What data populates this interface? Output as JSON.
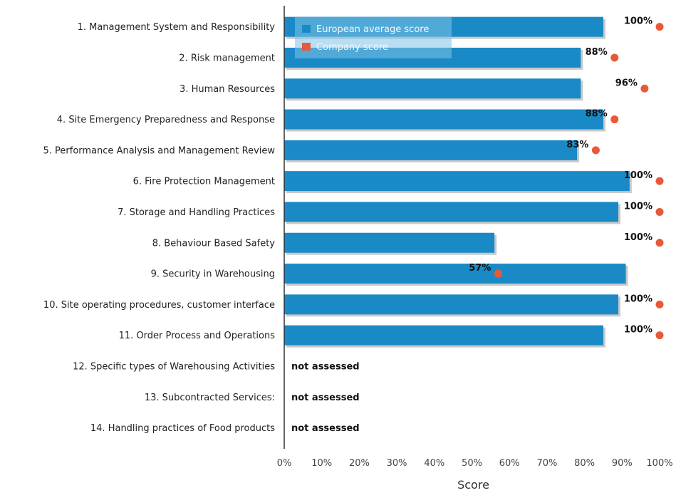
{
  "chart_data": {
    "type": "bar",
    "orientation": "horizontal",
    "categories": [
      "1. Management System and Responsibility",
      "2. Risk management",
      "3. Human Resources",
      "4. Site Emergency Preparedness and Response",
      "5. Performance Analysis and Management Review",
      "6. Fire Protection Management",
      "7. Storage and Handling Practices",
      "8. Behaviour Based Safety",
      "9. Security in Warehousing",
      "10. Site operating procedures, customer interface",
      "11. Order Process and Operations",
      "12. Specific types of Warehousing Activities",
      "13. Subcontracted Services:",
      "14. Handling practices of Food products"
    ],
    "series": [
      {
        "name": "European average score",
        "color": "#1a8ac6",
        "values": [
          85,
          79,
          79,
          85,
          78,
          92,
          89,
          56,
          91,
          89,
          85,
          null,
          null,
          null
        ]
      },
      {
        "name": "Company score",
        "color": "#e8593a",
        "values": [
          100,
          88,
          96,
          88,
          83,
          100,
          100,
          100,
          57,
          100,
          100,
          null,
          null,
          null
        ],
        "labels": [
          "100%",
          "88%",
          "96%",
          "88%",
          "83%",
          "100%",
          "100%",
          "100%",
          "57%",
          "100%",
          "100%",
          "",
          "",
          ""
        ]
      }
    ],
    "not_assessed_label": "not assessed",
    "not_assessed": [
      false,
      false,
      false,
      false,
      false,
      false,
      false,
      false,
      false,
      false,
      false,
      true,
      true,
      true
    ],
    "xlabel": "Score",
    "xlim": [
      0,
      100
    ],
    "xticks": [
      "0%",
      "10%",
      "20%",
      "30%",
      "40%",
      "50%",
      "60%",
      "70%",
      "80%",
      "90%",
      "100%"
    ],
    "grid": false,
    "legend_position": "top-left"
  }
}
